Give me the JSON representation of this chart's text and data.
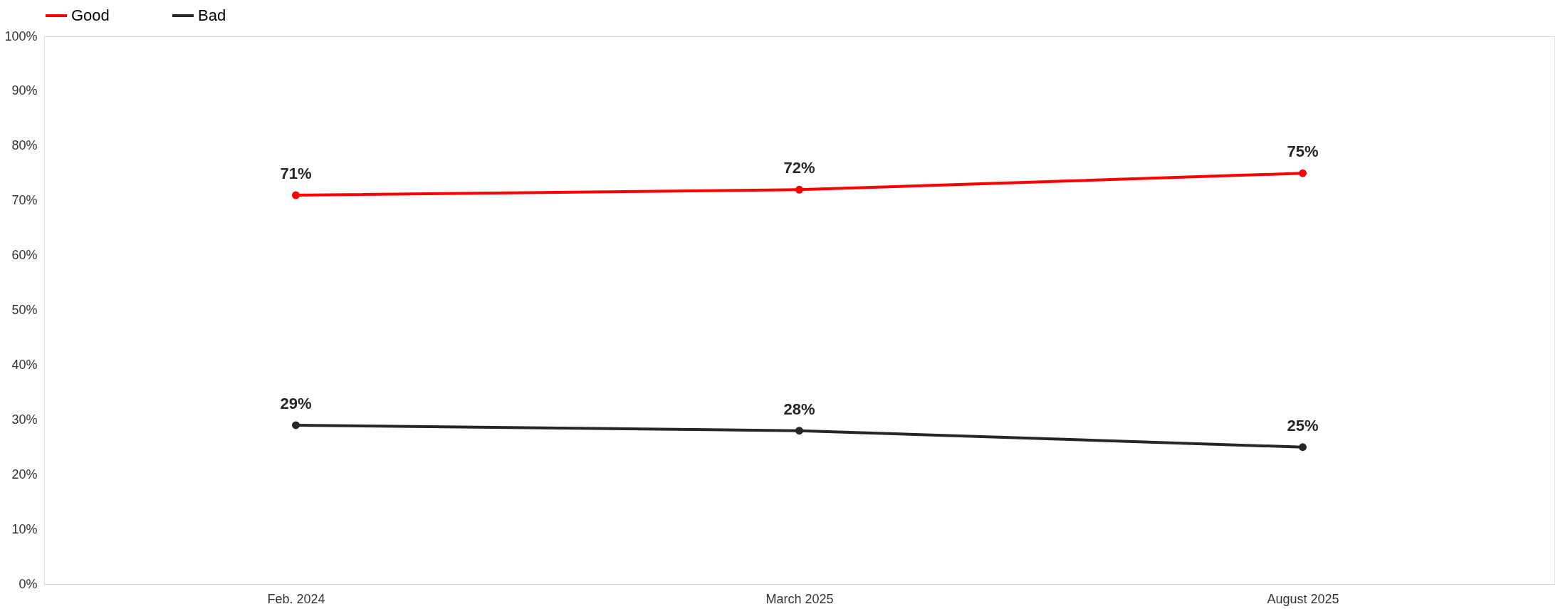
{
  "chart_data": {
    "type": "line",
    "categories": [
      "Feb. 2024",
      "March 2025",
      "August 2025"
    ],
    "series": [
      {
        "name": "Good",
        "color": "#ff0000",
        "values": [
          71,
          72,
          75
        ],
        "value_labels": [
          "71%",
          "72%",
          "75%"
        ]
      },
      {
        "name": "Bad",
        "color": "#262626",
        "values": [
          29,
          28,
          25
        ],
        "value_labels": [
          "29%",
          "28%",
          "25%"
        ]
      }
    ],
    "ylim": [
      0,
      100
    ],
    "yticks": [
      {
        "value": 0,
        "label": "0%"
      },
      {
        "value": 10,
        "label": "10%"
      },
      {
        "value": 20,
        "label": "20%"
      },
      {
        "value": 30,
        "label": "30%"
      },
      {
        "value": 40,
        "label": "40%"
      },
      {
        "value": 50,
        "label": "50%"
      },
      {
        "value": 60,
        "label": "60%"
      },
      {
        "value": 70,
        "label": "70%"
      },
      {
        "value": 80,
        "label": "80%"
      },
      {
        "value": 90,
        "label": "90%"
      },
      {
        "value": 100,
        "label": "100%"
      }
    ],
    "grid": false,
    "legend": "top",
    "marker": "circle",
    "line_style": "solid"
  }
}
